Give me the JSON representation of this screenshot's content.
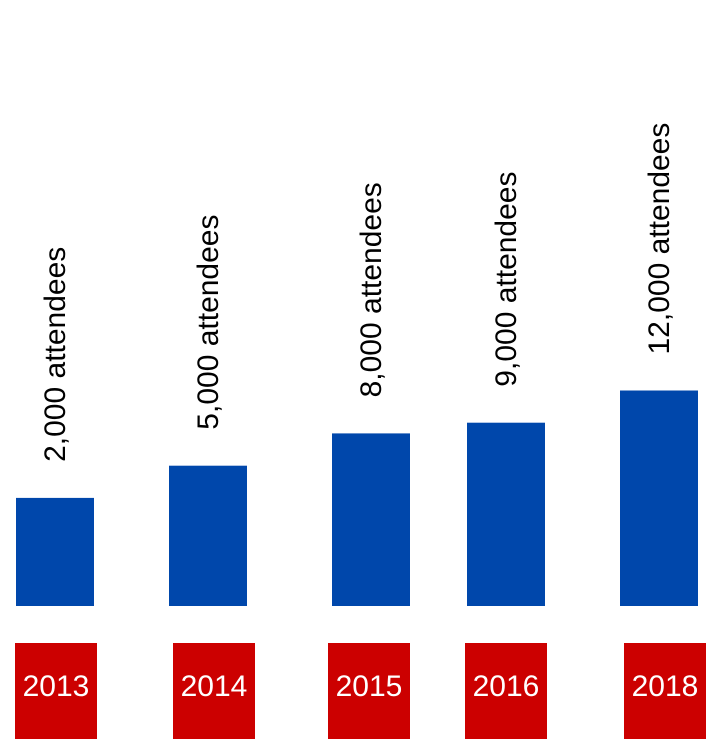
{
  "chart_data": {
    "type": "bar",
    "categories": [
      "2013",
      "2014",
      "2015",
      "2016",
      "2018"
    ],
    "values": [
      2000,
      5000,
      8000,
      9000,
      12000
    ],
    "data_labels": [
      "2,000 attendees",
      "5,000 attendees",
      "8,000 attendees",
      "9,000 attendees",
      "12,000 attendees"
    ],
    "colors": {
      "bar": "#0047AB",
      "category_box": "#CC0000",
      "category_text": "#FFFFFF",
      "data_label_text": "#000000"
    }
  }
}
